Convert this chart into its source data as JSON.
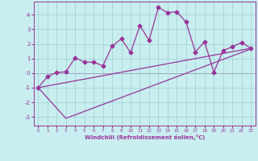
{
  "xlabel": "Windchill (Refroidissement éolien,°C)",
  "xlim": [
    -0.5,
    23.5
  ],
  "ylim": [
    -3.6,
    4.9
  ],
  "xticks": [
    0,
    1,
    2,
    3,
    4,
    5,
    6,
    7,
    8,
    9,
    10,
    11,
    12,
    13,
    14,
    15,
    16,
    17,
    18,
    19,
    20,
    21,
    22,
    23
  ],
  "yticks": [
    -3,
    -2,
    -1,
    0,
    1,
    2,
    3,
    4
  ],
  "bg_color": "#c8eef0",
  "line_color": "#993399",
  "grid_color": "#9ecfcf",
  "line1_x": [
    0,
    1,
    2,
    3,
    4,
    5,
    6,
    7,
    8,
    9,
    10,
    11,
    12,
    13,
    14,
    15,
    16,
    17,
    18,
    19,
    20,
    21,
    22,
    23
  ],
  "line1_y": [
    -1.0,
    -0.25,
    0.05,
    0.08,
    1.05,
    0.75,
    0.75,
    0.5,
    1.85,
    2.35,
    1.4,
    3.25,
    2.25,
    4.5,
    4.15,
    4.2,
    3.5,
    1.45,
    2.15,
    0.05,
    1.55,
    1.8,
    2.1,
    1.7
  ],
  "line2_x": [
    0,
    23
  ],
  "line2_y": [
    -1.0,
    1.7
  ],
  "line3_x": [
    0,
    3,
    23
  ],
  "line3_y": [
    -1.0,
    -3.1,
    1.65
  ],
  "marker": "D",
  "marker_size": 2.5,
  "line_width": 0.9,
  "tick_fontsize_x": 4.0,
  "tick_fontsize_y": 5.0,
  "xlabel_fontsize": 5.0
}
